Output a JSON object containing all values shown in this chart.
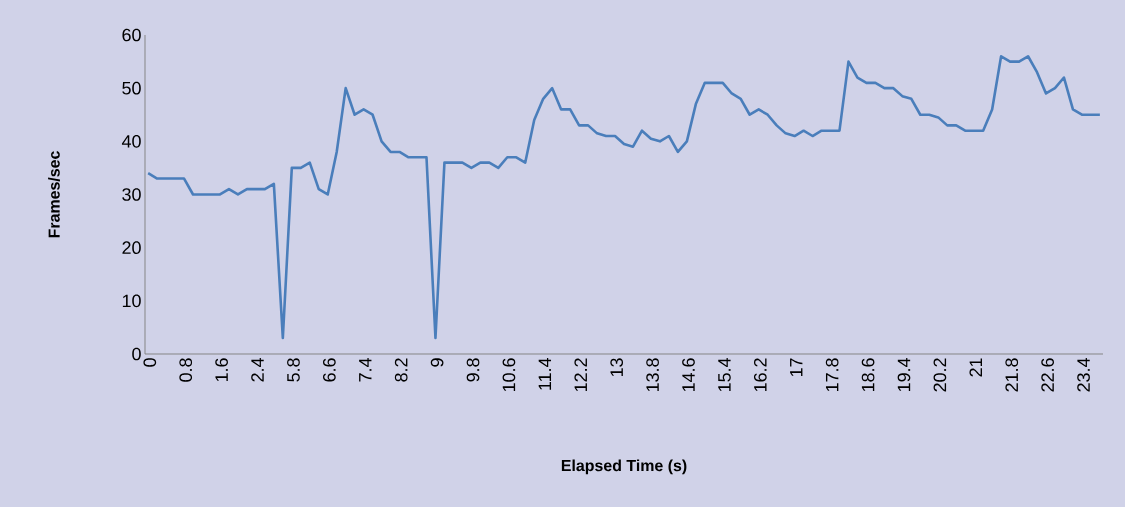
{
  "chart_data": {
    "type": "line",
    "xlabel": "Elapsed Time (s)",
    "ylabel": "Frames/sec",
    "categories": [
      "0",
      null,
      null,
      null,
      "0.8",
      null,
      null,
      null,
      "1.6",
      null,
      null,
      null,
      "2.4",
      null,
      null,
      null,
      "5.8",
      null,
      null,
      null,
      "6.6",
      null,
      null,
      null,
      "7.4",
      null,
      null,
      null,
      "8.2",
      null,
      null,
      null,
      "9",
      null,
      null,
      null,
      "9.8",
      null,
      null,
      null,
      "10.6",
      null,
      null,
      null,
      "11.4",
      null,
      null,
      null,
      "12.2",
      null,
      null,
      null,
      "13",
      null,
      null,
      null,
      "13.8",
      null,
      null,
      null,
      "14.6",
      null,
      null,
      null,
      "15.4",
      null,
      null,
      null,
      "16.2",
      null,
      null,
      null,
      "17",
      null,
      null,
      null,
      "17.8",
      null,
      null,
      null,
      "18.6",
      null,
      null,
      null,
      "19.4",
      null,
      null,
      null,
      "20.2",
      null,
      null,
      null,
      "21",
      null,
      null,
      null,
      "21.8",
      null,
      null,
      null,
      "22.6",
      null,
      null,
      null,
      "23.4",
      null,
      null
    ],
    "series": [
      {
        "color": "#4a7ebb",
        "values": [
          34,
          33,
          33,
          33,
          33,
          30,
          30,
          30,
          30,
          31,
          30,
          31,
          31,
          31,
          32,
          3,
          35,
          35,
          36,
          31,
          30,
          38,
          50,
          45,
          46,
          45,
          40,
          38,
          38,
          37,
          37,
          37,
          3,
          36,
          36,
          36,
          35,
          36,
          36,
          35,
          37,
          37,
          36,
          44,
          48,
          50,
          46,
          46,
          43,
          43,
          41.5,
          41,
          41,
          39.5,
          39,
          42,
          40.5,
          40,
          41,
          38,
          40,
          47,
          51,
          51,
          51,
          49,
          48,
          45,
          46,
          45,
          43,
          41.5,
          41,
          42,
          41,
          42,
          42,
          42,
          55,
          52,
          51,
          51,
          50,
          50,
          48.5,
          48,
          45,
          45,
          44.5,
          43,
          43,
          42,
          42,
          42,
          46,
          56,
          55,
          55,
          56,
          53,
          49,
          50,
          52,
          46,
          45,
          45,
          45
        ]
      }
    ],
    "ylim": [
      0,
      60
    ],
    "yticks": [
      0,
      10,
      20,
      30,
      40,
      50,
      60
    ],
    "grid": false,
    "legend": false,
    "marker": "none",
    "line_style": "solid"
  }
}
